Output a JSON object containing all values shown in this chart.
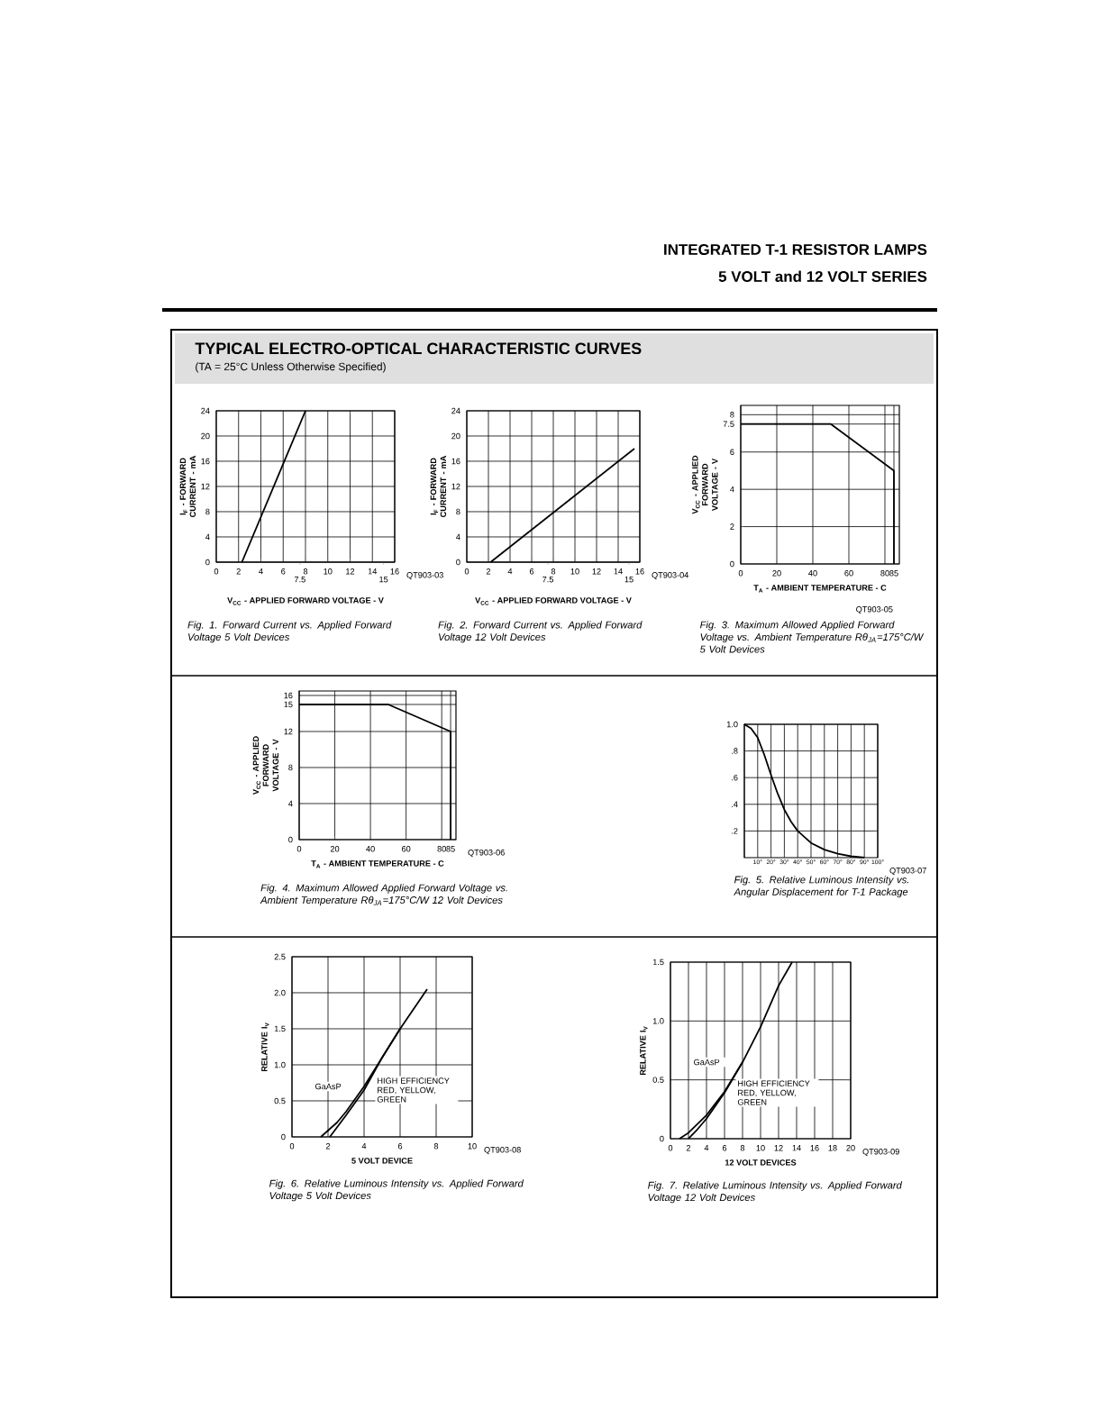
{
  "chart_data": [
    {
      "type": "line",
      "title": "TYPICAL ELECTRO-OPTICAL CHARACTERISTIC CURVES",
      "subtitle": "(TA = 25°C Unless Otherwise Specified)",
      "xlabel": "V$_{CC}$ - APPLIED FORWARD VOLTAGE - V",
      "ylabel": "I$_{F}$ - FORWARD CURRENT - mA",
      "xlim": [
        0,
        16
      ],
      "ylim": [
        0,
        24
      ],
      "xticks": [
        0,
        2,
        4,
        6,
        8,
        10,
        12,
        14,
        16
      ],
      "x2lim": [
        0,
        16
      ],
      "x2ticks": [
        7.5,
        15
      ],
      "yticks": [
        0,
        4,
        8,
        12,
        16,
        20,
        24
      ],
      "grid": true,
      "series": [
        {
          "color": "#000000",
          "x": [
            2.3,
            8
          ],
          "values": [
            0,
            24
          ]
        }
      ],
      "annotations": [
        "Fig. 1. Forward Current vs. Applied Forward Voltage 5 Volt Devices",
        "QT903-03",
        "INTEGRATED T-1 RESISTOR LAMPS",
        "5 VOLT and 12 VOLT SERIES"
      ]
    },
    {
      "type": "line",
      "xlabel": "V$_{CC}$ - APPLIED FORWARD VOLTAGE - V",
      "ylabel": "I$_{F}$ - FORWARD CURRENT - mA",
      "xlim": [
        0,
        16
      ],
      "ylim": [
        0,
        24
      ],
      "xticks": [
        0,
        2,
        4,
        6,
        8,
        10,
        12,
        14,
        16
      ],
      "x2lim": [
        0,
        16
      ],
      "x2ticks": [
        7.5,
        15
      ],
      "yticks": [
        0,
        4,
        8,
        12,
        16,
        20,
        24
      ],
      "grid": true,
      "series": [
        {
          "color": "#000000",
          "x": [
            2.2,
            15.5
          ],
          "values": [
            0,
            18
          ]
        }
      ],
      "annotations": [
        "Fig. 2. Forward Current vs. Applied Forward Voltage 12 Volt Devices",
        "QT903-04"
      ]
    },
    {
      "type": "line",
      "xlabel": "T$_{A}$ - AMBIENT TEMPERATURE - C",
      "ylabel": "V$_{CC}$ - APPLIED FORWARD VOLTAGE - V",
      "xlim": [
        0,
        88
      ],
      "ylim": [
        0,
        8.5
      ],
      "xticks": [
        0,
        20,
        40,
        60,
        80,
        85
      ],
      "yticks": [
        0,
        2,
        4,
        6,
        7.5,
        8
      ],
      "grid": true,
      "series": [
        {
          "color": "#000000",
          "x": [
            0,
            50,
            85,
            85
          ],
          "values": [
            7.5,
            7.5,
            5,
            0
          ]
        }
      ],
      "annotations": [
        "Fig. 3. Maximum Allowed Applied Forward Voltage vs. Ambient Temperature Rθ$_{JA}$=175°C/W 5 Volt Devices",
        "QT903-05"
      ]
    },
    {
      "type": "line",
      "xlabel": "T$_{A}$ - AMBIENT TEMPERATURE - C",
      "ylabel": "V$_{CC}$ - APPLIED FORWARD VOLTAGE - V",
      "xlim": [
        0,
        88
      ],
      "ylim": [
        0,
        16.5
      ],
      "xticks": [
        0,
        20,
        40,
        60,
        80,
        85
      ],
      "yticks": [
        0,
        4,
        8,
        12,
        15,
        16
      ],
      "grid": true,
      "series": [
        {
          "color": "#000000",
          "x": [
            0,
            50,
            85,
            85
          ],
          "values": [
            15,
            15,
            12,
            0
          ]
        }
      ],
      "annotations": [
        "Fig. 4. Maximum Allowed Applied Forward Voltage vs. Ambient Temperature Rθ$_{JA}$=175°C/W 12 Volt Devices",
        "QT903-06"
      ]
    },
    {
      "type": "line",
      "xlim": [
        0,
        100
      ],
      "ylim": [
        0,
        1
      ],
      "xticks": [
        {
          "value": 0,
          "label": null
        },
        {
          "value": 10,
          "label": "10°"
        },
        {
          "value": 20,
          "label": "20°"
        },
        {
          "value": 30,
          "label": "30°"
        },
        {
          "value": 40,
          "label": "40°"
        },
        {
          "value": 50,
          "label": "50°"
        },
        {
          "value": 60,
          "label": "60°"
        },
        {
          "value": 70,
          "label": "70°"
        },
        {
          "value": 80,
          "label": "80°"
        },
        {
          "value": 90,
          "label": "90°"
        },
        {
          "value": 100,
          "label": "100°"
        }
      ],
      "yticks": [
        {
          "value": 0.2,
          "label": ".2"
        },
        {
          "value": 0.4,
          "label": ".4"
        },
        {
          "value": 0.6,
          "label": ".6"
        },
        {
          "value": 0.8,
          "label": ".8"
        },
        {
          "value": 1.0,
          "label": "1.0"
        }
      ],
      "grid": true,
      "series": [
        {
          "color": "#000000",
          "x": [
            0,
            5,
            10,
            15,
            20,
            25,
            30,
            35,
            40,
            50,
            60,
            70,
            80,
            90
          ],
          "values": [
            1.0,
            0.97,
            0.9,
            0.77,
            0.62,
            0.48,
            0.36,
            0.27,
            0.2,
            0.11,
            0.06,
            0.03,
            0.01,
            0
          ]
        }
      ],
      "annotations": [
        "Fig. 5. Relative Luminous Intensity vs. Angular Displacement for T-1 Package",
        "QT903-07"
      ]
    },
    {
      "type": "line",
      "xlabel": "5 VOLT DEVICE",
      "ylabel": "RELATIVE I$_{V}$",
      "xlim": [
        0,
        10
      ],
      "ylim": [
        0,
        2.5
      ],
      "xticks": [
        0,
        2,
        4,
        6,
        8,
        10
      ],
      "yticks": [
        0,
        0.5,
        {
          "value": 1,
          "label": "1.0"
        },
        1.5,
        {
          "value": 2,
          "label": "2.0"
        },
        2.5
      ],
      "grid": true,
      "series": [
        {
          "name": "GaAsP",
          "color": "#000000",
          "x": [
            1.6,
            2.5,
            3,
            4,
            5,
            6,
            7.5
          ],
          "values": [
            0,
            0.2,
            0.35,
            0.7,
            1.1,
            1.5,
            2.05
          ]
        },
        {
          "name": "HIGH EFFICIENCY RED, YELLOW, GREEN",
          "color": "#000000",
          "x": [
            2.1,
            3,
            4,
            5,
            6
          ],
          "values": [
            0,
            0.3,
            0.65,
            1.1,
            1.5
          ]
        }
      ],
      "annotations": [
        "Fig. 6. Relative Luminous Intensity vs. Applied Forward Voltage 5 Volt Devices",
        "QT903-08"
      ]
    },
    {
      "type": "line",
      "xlabel": "12 VOLT DEVICES",
      "ylabel": "RELATIVE I$_{V}$",
      "xlim": [
        0,
        20
      ],
      "ylim": [
        0,
        1.5
      ],
      "xticks": [
        0,
        2,
        4,
        6,
        8,
        10,
        12,
        14,
        16,
        18,
        20
      ],
      "yticks": [
        0,
        0.5,
        {
          "value": 1,
          "label": "1.0"
        },
        1.5
      ],
      "grid": true,
      "series": [
        {
          "name": "GaAsP",
          "color": "#000000",
          "x": [
            1,
            2,
            4,
            6,
            8,
            10,
            12,
            13.5
          ],
          "values": [
            0,
            0.05,
            0.2,
            0.4,
            0.65,
            0.95,
            1.3,
            1.5
          ]
        },
        {
          "name": "HIGH EFFICIENCY RED, YELLOW, GREEN",
          "color": "#000000",
          "x": [
            2,
            3,
            4,
            6,
            8
          ],
          "values": [
            0,
            0.08,
            0.17,
            0.39,
            0.65
          ]
        }
      ],
      "annotations": [
        "Fig. 7. Relative Luminous Intensity vs. Applied Forward Voltage 12 Volt Devices",
        "QT903-09"
      ]
    }
  ]
}
